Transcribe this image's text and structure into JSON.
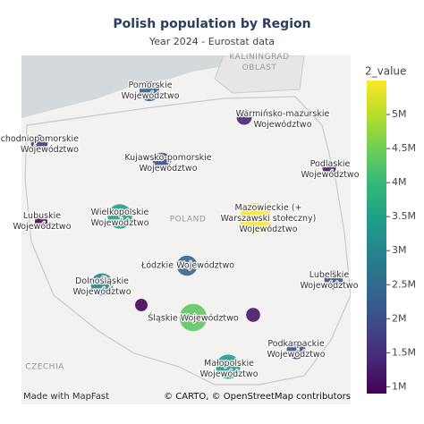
{
  "chart_data": {
    "type": "scatter_map",
    "title": "Polish population by Region",
    "subtitle": "Year 2024 - Eurostat data",
    "categories": [
      "Pomorskie\nWojewództwo",
      "Zachodniopomorskie\nWojewództwo",
      "Warmińsko-mazurskie\nWojewództwo",
      "Kujawsko-pomorskie\nWojewództwo",
      "Podlaskie\nWojewództwo",
      "Lubuskie\nWojewództwo",
      "Wielkopolskie\nWojewództwo",
      "Mazowieckie (+\nWarszawski stołeczny)\nWojewództwo",
      "Łódzkie Województwo",
      "Lubelskie\nWojewództwo",
      "Dolnośląskie\nWojewództwo",
      null,
      null,
      "Śląskie Województwo",
      "Podkarpackie\nWojewództwo",
      "Małopolskie\nWojewództwo"
    ],
    "values": [
      2350000,
      1650000,
      1380000,
      2000000,
      1150000,
      980000,
      3500000,
      5500000,
      2400000,
      2020000,
      2880000,
      950000,
      1190000,
      4350000,
      2080000,
      3430000
    ],
    "colorscale": "Viridis",
    "colorbar_title": "2_value",
    "clim": [
      900000,
      5500000
    ],
    "cticks": [
      {
        "value": 1000000,
        "label": "1M"
      },
      {
        "value": 1500000,
        "label": "1.5M"
      },
      {
        "value": 2000000,
        "label": "2M"
      },
      {
        "value": 2500000,
        "label": "2.5M"
      },
      {
        "value": 3000000,
        "label": "3M"
      },
      {
        "value": 3500000,
        "label": "3.5M"
      },
      {
        "value": 4000000,
        "label": "4M"
      },
      {
        "value": 4500000,
        "label": "4.5M"
      },
      {
        "value": 5000000,
        "label": "5M"
      }
    ],
    "map_labels": [
      "KALININGRAD\nOBLAST",
      "POLAND",
      "CZECHIA"
    ],
    "credit_left": "Made with MapFast",
    "credit_right": "© CARTO, © OpenStreetMap contributors"
  }
}
